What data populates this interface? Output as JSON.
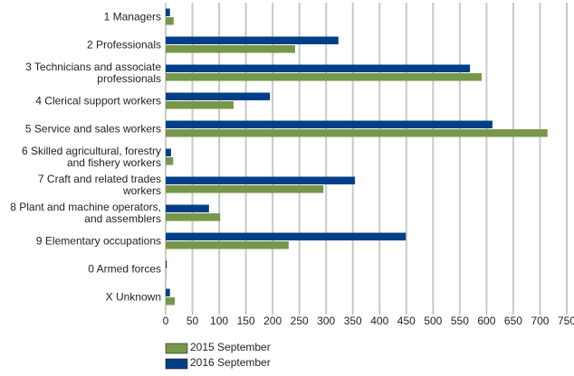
{
  "chart_data": {
    "type": "hbar",
    "categories": [
      "1 Managers",
      "2 Professionals",
      "3 Technicians and associate professionals",
      "4 Clerical support workers",
      "5 Service and sales workers",
      "6 Skilled agricultural, forestry and fishery workers",
      "7 Craft and related trades workers",
      "8 Plant and machine operators, and assemblers",
      "9 Elementary occupations",
      "0 Armed forces",
      "X Unknown"
    ],
    "series": [
      {
        "name": "2016 September",
        "color": "#003f87",
        "values": [
          8,
          323,
          569,
          195,
          611,
          10,
          354,
          81,
          449,
          2,
          8
        ]
      },
      {
        "name": "2015 September",
        "color": "#77974a",
        "values": [
          15,
          242,
          591,
          127,
          714,
          14,
          295,
          102,
          230,
          1,
          17
        ]
      }
    ],
    "legend_order": [
      "2015 September",
      "2016 September"
    ],
    "xlim": [
      0,
      750
    ],
    "xticks": [
      0,
      50,
      100,
      150,
      200,
      250,
      300,
      350,
      400,
      450,
      500,
      550,
      600,
      650,
      700,
      750
    ],
    "grid": true
  }
}
